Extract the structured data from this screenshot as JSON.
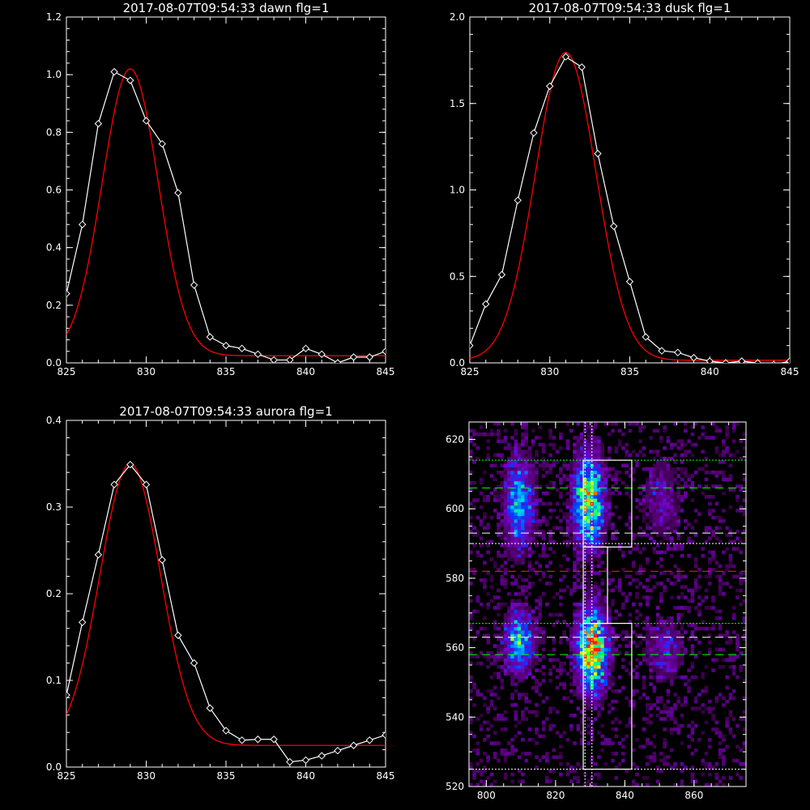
{
  "chart_data": [
    {
      "type": "line",
      "title": "2017-08-07T09:54:33 dawn flg=1",
      "xlim": [
        825,
        845
      ],
      "ylim": [
        0,
        1.2
      ],
      "xticks": [
        825,
        830,
        835,
        840,
        845
      ],
      "xtick_labels": [
        "825",
        "830",
        "835",
        "840",
        "845"
      ],
      "yticks": [
        0.0,
        0.2,
        0.4,
        0.6,
        0.8,
        1.0,
        1.2
      ],
      "ytick_labels": [
        "0.0",
        "0.2",
        "0.4",
        "0.6",
        "0.8",
        "1.0",
        "1.2"
      ],
      "data": {
        "x": [
          825,
          826,
          827,
          828,
          829,
          830,
          831,
          832,
          833,
          834,
          835,
          836,
          837,
          838,
          839,
          840,
          841,
          842,
          843,
          844,
          845
        ],
        "y": [
          0.24,
          0.48,
          0.83,
          1.01,
          0.98,
          0.84,
          0.76,
          0.59,
          0.27,
          0.09,
          0.06,
          0.05,
          0.03,
          0.01,
          0.01,
          0.05,
          0.03,
          0.0,
          0.02,
          0.02,
          0.04
        ]
      },
      "fit": {
        "amplitude": 0.995,
        "center": 829.0,
        "sigma": 1.75,
        "baseline": 0.025,
        "color": "#ff0000"
      }
    },
    {
      "type": "line",
      "title": "2017-08-07T09:54:33 dusk flg=1",
      "xlim": [
        825,
        845
      ],
      "ylim": [
        0,
        2.0
      ],
      "xticks": [
        825,
        830,
        835,
        840,
        845
      ],
      "xtick_labels": [
        "825",
        "830",
        "835",
        "840",
        "845"
      ],
      "yticks": [
        0.0,
        0.5,
        1.0,
        1.5,
        2.0
      ],
      "ytick_labels": [
        "0.0",
        "0.5",
        "1.0",
        "1.5",
        "2.0"
      ],
      "data": {
        "x": [
          825,
          826,
          827,
          828,
          829,
          830,
          831,
          832,
          833,
          834,
          835,
          836,
          837,
          838,
          839,
          840,
          841,
          842,
          843,
          844,
          845
        ],
        "y": [
          0.1,
          0.34,
          0.51,
          0.94,
          1.33,
          1.6,
          1.77,
          1.71,
          1.21,
          0.79,
          0.47,
          0.15,
          0.07,
          0.06,
          0.03,
          0.01,
          0.0,
          0.01,
          0.0,
          -0.01,
          0.01
        ]
      },
      "fit": {
        "amplitude": 1.78,
        "center": 831.0,
        "sigma": 1.9,
        "baseline": 0.015,
        "color": "#ff0000"
      }
    },
    {
      "type": "line",
      "title": "2017-08-07T09:54:33 aurora flg=1",
      "xlim": [
        825,
        845
      ],
      "ylim": [
        0,
        0.4
      ],
      "xticks": [
        825,
        830,
        835,
        840,
        845
      ],
      "xtick_labels": [
        "825",
        "830",
        "835",
        "840",
        "845"
      ],
      "yticks": [
        0.0,
        0.1,
        0.2,
        0.3,
        0.4
      ],
      "ytick_labels": [
        "0.0",
        "0.1",
        "0.2",
        "0.3",
        "0.4"
      ],
      "data": {
        "x": [
          825,
          826,
          827,
          828,
          829,
          830,
          831,
          832,
          833,
          834,
          835,
          836,
          837,
          838,
          839,
          840,
          841,
          842,
          843,
          844,
          845
        ],
        "y": [
          0.083,
          0.167,
          0.245,
          0.326,
          0.349,
          0.326,
          0.239,
          0.152,
          0.12,
          0.068,
          0.042,
          0.031,
          0.032,
          0.032,
          0.006,
          0.008,
          0.013,
          0.019,
          0.025,
          0.031,
          0.037
        ]
      },
      "fit": {
        "amplitude": 0.325,
        "center": 829.0,
        "sigma": 1.9,
        "baseline": 0.025,
        "color": "#ff0000"
      }
    },
    {
      "type": "heatmap",
      "title": "",
      "xlim": [
        795,
        875
      ],
      "ylim": [
        520,
        625
      ],
      "xticks": [
        800,
        820,
        840,
        860
      ],
      "xtick_labels": [
        "800",
        "820",
        "840",
        "860"
      ],
      "yticks": [
        520,
        540,
        560,
        580,
        600,
        620
      ],
      "ytick_labels": [
        "520",
        "540",
        "560",
        "580",
        "600",
        "620"
      ],
      "blobs": [
        {
          "x": 829,
          "y": 602,
          "sx": 3,
          "sy": 9,
          "peak": 0.85
        },
        {
          "x": 809,
          "y": 601,
          "sx": 3,
          "sy": 9,
          "peak": 0.55
        },
        {
          "x": 850,
          "y": 602,
          "sx": 4,
          "sy": 8,
          "peak": 0.22
        },
        {
          "x": 830,
          "y": 559,
          "sx": 3,
          "sy": 8,
          "peak": 1.0
        },
        {
          "x": 809,
          "y": 561,
          "sx": 3,
          "sy": 6,
          "peak": 0.6
        },
        {
          "x": 851,
          "y": 559,
          "sx": 4,
          "sy": 6,
          "peak": 0.25
        }
      ],
      "h_lines": [
        {
          "y": 614,
          "color": "#00ff00",
          "dash": "2,2"
        },
        {
          "y": 606,
          "color": "#00ff00",
          "dash": "10,6"
        },
        {
          "y": 593,
          "color": "#ffffff",
          "dash": "10,6"
        },
        {
          "y": 590,
          "color": "#ffffff",
          "dash": "2,2"
        },
        {
          "y": 582,
          "color": "#ff2020",
          "dash": "10,6"
        },
        {
          "y": 567,
          "color": "#00ff00",
          "dash": "2,2"
        },
        {
          "y": 563,
          "color": "#ffffff",
          "dash": "10,6"
        },
        {
          "y": 558,
          "color": "#00ff00",
          "dash": "10,6"
        },
        {
          "y": 525,
          "color": "#ffffff",
          "dash": "2,2"
        }
      ],
      "v_lines": [
        {
          "x": 828.5,
          "color": "#ffffff",
          "dash": "2,2"
        },
        {
          "x": 830.5,
          "color": "#ffffff",
          "dash": "2,2"
        }
      ],
      "boxes": [
        {
          "x0": 828,
          "x1": 842,
          "y0": 589,
          "y1": 614
        },
        {
          "x0": 828,
          "x1": 835,
          "y0": 567,
          "y1": 589
        },
        {
          "x0": 828,
          "x1": 842,
          "y0": 525,
          "y1": 567
        }
      ]
    }
  ]
}
